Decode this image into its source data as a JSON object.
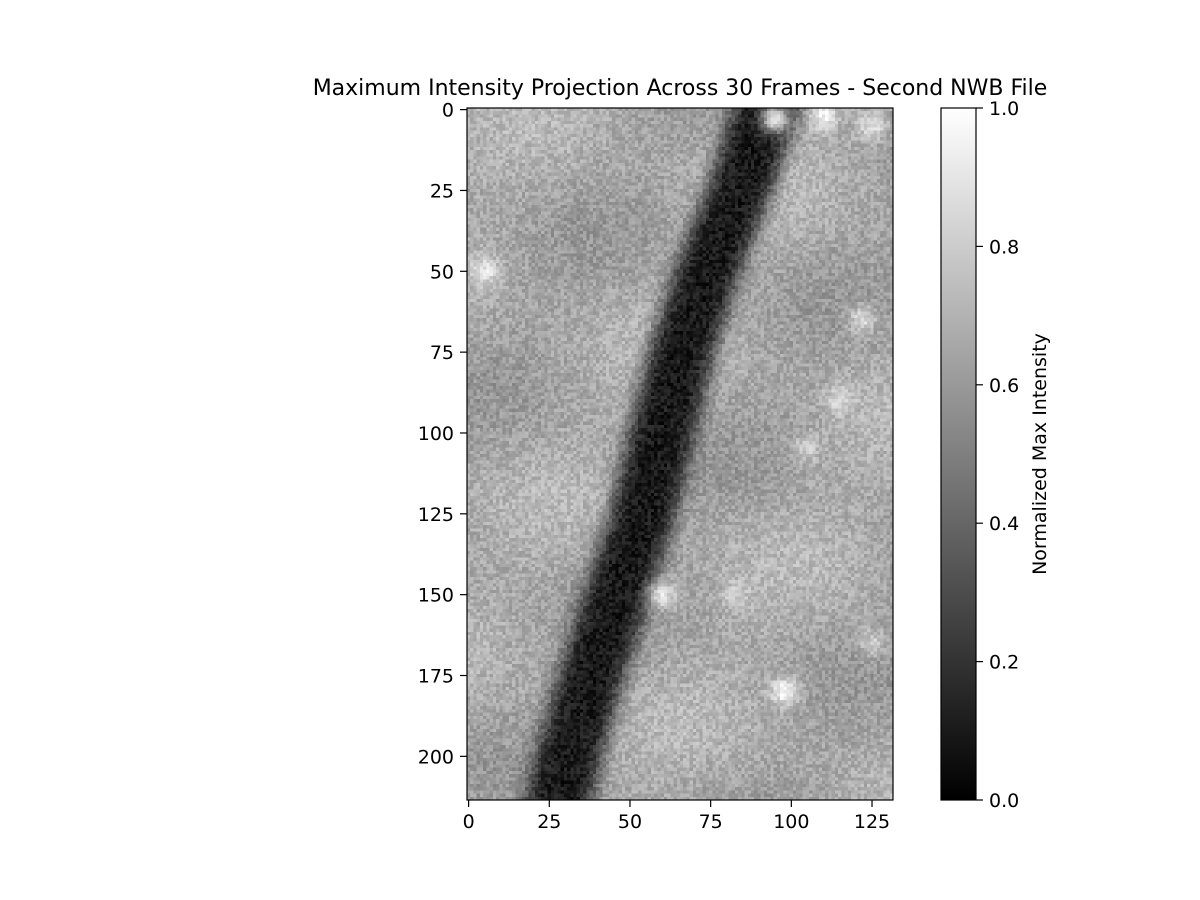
{
  "chart_data": {
    "type": "heatmap",
    "title": "Maximum Intensity Projection Across 30 Frames - Second NWB File",
    "xlabel": "",
    "ylabel": "",
    "colormap": "gray",
    "image_shape": [
      214,
      132
    ],
    "xlim": [
      -0.5,
      131.5
    ],
    "ylim": [
      213.5,
      -0.5
    ],
    "x_ticks": [
      0,
      25,
      50,
      75,
      100,
      125
    ],
    "y_ticks": [
      0,
      25,
      50,
      75,
      100,
      125,
      150,
      175,
      200
    ],
    "colorbar": {
      "label": "Normalized Max Intensity",
      "range": [
        0.0,
        1.0
      ],
      "ticks": [
        "0.0",
        "0.2",
        "0.4",
        "0.6",
        "0.8",
        "1.0"
      ]
    },
    "background_level": 0.66,
    "dark_band": {
      "level": 0.1,
      "centerline": [
        [
          0,
          92
        ],
        [
          25,
          84
        ],
        [
          50,
          74
        ],
        [
          75,
          66
        ],
        [
          100,
          60
        ],
        [
          125,
          54
        ],
        [
          150,
          46
        ],
        [
          175,
          38
        ],
        [
          200,
          31
        ],
        [
          213,
          28
        ]
      ],
      "half_width": 11
    },
    "bright_spots": [
      {
        "x": 95,
        "y": 3,
        "level": 0.95
      },
      {
        "x": 110,
        "y": 2,
        "level": 0.95
      },
      {
        "x": 125,
        "y": 5,
        "level": 0.9
      },
      {
        "x": 5,
        "y": 50,
        "level": 0.9
      },
      {
        "x": 122,
        "y": 65,
        "level": 0.85
      },
      {
        "x": 115,
        "y": 90,
        "level": 0.85
      },
      {
        "x": 105,
        "y": 105,
        "level": 0.8
      },
      {
        "x": 60,
        "y": 150,
        "level": 0.9
      },
      {
        "x": 83,
        "y": 150,
        "level": 0.8
      },
      {
        "x": 98,
        "y": 180,
        "level": 0.98
      },
      {
        "x": 125,
        "y": 165,
        "level": 0.8
      }
    ]
  }
}
